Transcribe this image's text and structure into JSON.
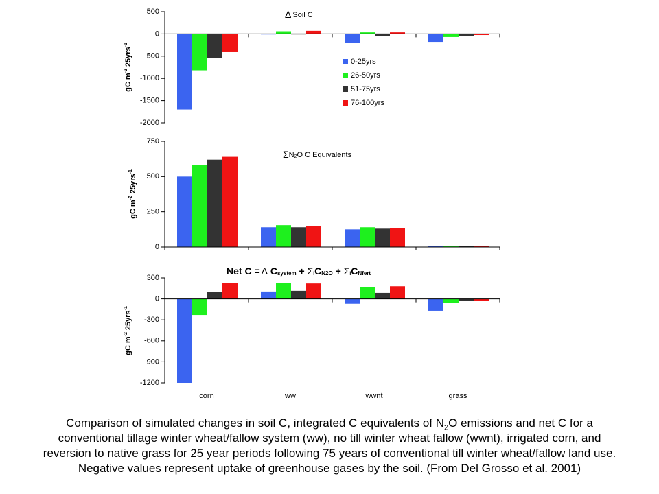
{
  "legend": {
    "entries": [
      "0-25yrs",
      "26-50yrs",
      "51-75yrs",
      "76-100yrs"
    ],
    "colors": [
      "#3B64F0",
      "#1EF01E",
      "#333333",
      "#F01414"
    ]
  },
  "categories": [
    "corn",
    "ww",
    "wwnt",
    "grass"
  ],
  "chart_data": [
    {
      "type": "bar",
      "title_prefix": "Δ",
      "title": "Soil C",
      "ylabel_main": "gC m",
      "ylabel_sup1": "-2",
      "ylabel_mid": " 25yrs",
      "ylabel_sup2": "-1",
      "ylim": [
        -2000,
        500
      ],
      "yticks": [
        "500",
        "0",
        "-500",
        "-1000",
        "-1500",
        "-2000"
      ],
      "ytick_values": [
        500,
        0,
        -500,
        -1000,
        -1500,
        -2000
      ],
      "series": [
        {
          "name": "0-25yrs",
          "values": [
            -1700,
            0,
            -200,
            -180
          ]
        },
        {
          "name": "26-50yrs",
          "values": [
            -820,
            60,
            35,
            -70
          ]
        },
        {
          "name": "51-75yrs",
          "values": [
            -540,
            0,
            -45,
            -40
          ]
        },
        {
          "name": "76-100yrs",
          "values": [
            -410,
            70,
            35,
            -25
          ]
        }
      ],
      "legend_placement": "right"
    },
    {
      "type": "bar",
      "title_prefix": "Σ",
      "title_html": "N<sub>2</sub>O C Equivalents",
      "title": "N2O C Equivalents",
      "ylabel_main": "gC m",
      "ylabel_sup1": "-2",
      "ylabel_mid": " 25yrs",
      "ylabel_sup2": "-1",
      "ylim": [
        0,
        750
      ],
      "yticks": [
        "750",
        "500",
        "250",
        "0"
      ],
      "ytick_values": [
        750,
        500,
        250,
        0
      ],
      "series": [
        {
          "name": "0-25yrs",
          "values": [
            500,
            140,
            125,
            8
          ]
        },
        {
          "name": "26-50yrs",
          "values": [
            580,
            155,
            140,
            8
          ]
        },
        {
          "name": "51-75yrs",
          "values": [
            620,
            140,
            130,
            8
          ]
        },
        {
          "name": "76-100yrs",
          "values": [
            640,
            150,
            135,
            8
          ]
        }
      ]
    },
    {
      "type": "bar",
      "title": "Net C = Δ Csystem + ΣCN2O + ΣCNfert",
      "ylabel_main": "gC m",
      "ylabel_sup1": "-2",
      "ylabel_mid": " 25yrs",
      "ylabel_sup2": "-1",
      "ylim": [
        -1200,
        300
      ],
      "yticks": [
        "300",
        "0",
        "-300",
        "-600",
        "-900",
        "-1200"
      ],
      "ytick_values": [
        300,
        0,
        -300,
        -600,
        -900,
        -1200
      ],
      "series": [
        {
          "name": "0-25yrs",
          "values": [
            -1200,
            105,
            -70,
            -170
          ]
        },
        {
          "name": "26-50yrs",
          "values": [
            -230,
            230,
            165,
            -55
          ]
        },
        {
          "name": "51-75yrs",
          "values": [
            100,
            115,
            85,
            -30
          ]
        },
        {
          "name": "76-100yrs",
          "values": [
            230,
            220,
            180,
            -30
          ]
        }
      ]
    }
  ],
  "net_title": {
    "prefix": "Net C =",
    "delta": "Δ",
    "c1": "C",
    "c1_sub": "system",
    "plus": "+",
    "sigma": "Σ",
    "sigma_sub": "i",
    "c2": "C",
    "c2_sub": "N2O",
    "c3": "C",
    "c3_sub": "Nfert"
  },
  "caption": {
    "part1": "Comparison of  simulated changes in soil C,  integrated C equivalents of N",
    "sub": "2",
    "part2": "O emissions and net C for a conventional tillage winter wheat/fallow system (ww), no till winter wheat fallow (wwnt), irrigated corn, and reversion to native grass for 25 year periods following 75 years of conventional till winter wheat/fallow land use. Negative values represent uptake of greenhouse gases by the soil. (From Del Grosso et al. 2001)"
  }
}
